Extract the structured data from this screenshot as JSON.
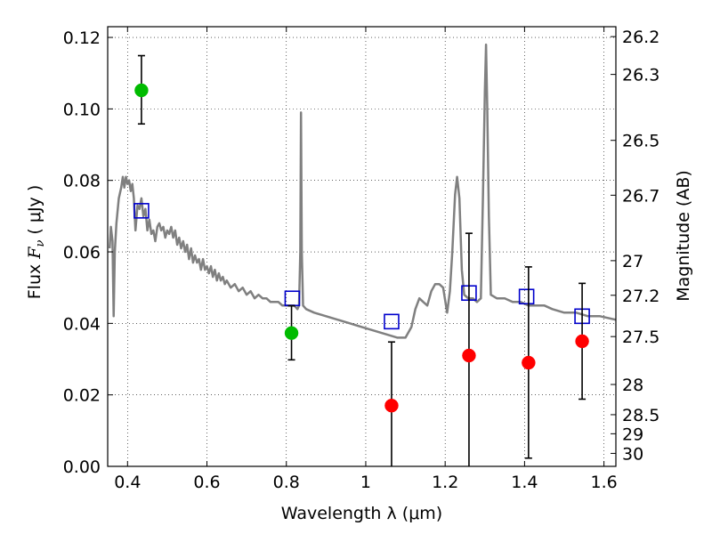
{
  "chart_data": {
    "type": "scatter",
    "xlabel": "Wavelength  λ (μm)",
    "ylabel_parts": [
      "Flux  ",
      "F",
      "ν",
      "  (  μJy  )"
    ],
    "y2label": "Magnitude (AB)",
    "xlim": [
      0.35,
      1.63
    ],
    "ylim": [
      0.0,
      0.123
    ],
    "grid": true,
    "x_ticks": [
      {
        "value": 0.4,
        "label": "0.4"
      },
      {
        "value": 0.6,
        "label": "0.6"
      },
      {
        "value": 0.8,
        "label": "0.8"
      },
      {
        "value": 1.0,
        "label": "1"
      },
      {
        "value": 1.2,
        "label": "1.2"
      },
      {
        "value": 1.4,
        "label": "1.4"
      },
      {
        "value": 1.6,
        "label": "1.6"
      }
    ],
    "y_ticks": [
      {
        "value": 0.0,
        "label": "0.00"
      },
      {
        "value": 0.02,
        "label": "0.02"
      },
      {
        "value": 0.04,
        "label": "0.04"
      },
      {
        "value": 0.06,
        "label": "0.06"
      },
      {
        "value": 0.08,
        "label": "0.08"
      },
      {
        "value": 0.1,
        "label": "0.10"
      },
      {
        "value": 0.12,
        "label": "0.12"
      }
    ],
    "mag_ticks": [
      {
        "mag": 26.2,
        "label": "26.2"
      },
      {
        "mag": 26.3,
        "label": "26.3"
      },
      {
        "mag": 26.5,
        "label": "26.5"
      },
      {
        "mag": 26.7,
        "label": "26.7"
      },
      {
        "mag": 27.0,
        "label": "27"
      },
      {
        "mag": 27.2,
        "label": "27.2"
      },
      {
        "mag": 27.5,
        "label": "27.5"
      },
      {
        "mag": 28.0,
        "label": "28"
      },
      {
        "mag": 28.5,
        "label": "28.5"
      },
      {
        "mag": 29.0,
        "label": "29"
      },
      {
        "mag": 30.0,
        "label": "30"
      }
    ],
    "series": [
      {
        "kind": "line",
        "color": "#808080",
        "points": [
          [
            0.355,
            0.061
          ],
          [
            0.358,
            0.067
          ],
          [
            0.362,
            0.063
          ],
          [
            0.365,
            0.042
          ],
          [
            0.368,
            0.06
          ],
          [
            0.372,
            0.068
          ],
          [
            0.378,
            0.075
          ],
          [
            0.384,
            0.078
          ],
          [
            0.388,
            0.081
          ],
          [
            0.392,
            0.078
          ],
          [
            0.396,
            0.081
          ],
          [
            0.4,
            0.079
          ],
          [
            0.404,
            0.08
          ],
          [
            0.408,
            0.077
          ],
          [
            0.412,
            0.079
          ],
          [
            0.416,
            0.075
          ],
          [
            0.42,
            0.066
          ],
          [
            0.425,
            0.073
          ],
          [
            0.43,
            0.072
          ],
          [
            0.435,
            0.075
          ],
          [
            0.44,
            0.07
          ],
          [
            0.445,
            0.072
          ],
          [
            0.45,
            0.066
          ],
          [
            0.455,
            0.069
          ],
          [
            0.46,
            0.065
          ],
          [
            0.465,
            0.066
          ],
          [
            0.47,
            0.063
          ],
          [
            0.475,
            0.067
          ],
          [
            0.48,
            0.068
          ],
          [
            0.485,
            0.066
          ],
          [
            0.49,
            0.067
          ],
          [
            0.495,
            0.064
          ],
          [
            0.5,
            0.066
          ],
          [
            0.505,
            0.065
          ],
          [
            0.51,
            0.067
          ],
          [
            0.515,
            0.064
          ],
          [
            0.52,
            0.066
          ],
          [
            0.525,
            0.062
          ],
          [
            0.53,
            0.064
          ],
          [
            0.535,
            0.061
          ],
          [
            0.54,
            0.063
          ],
          [
            0.545,
            0.06
          ],
          [
            0.55,
            0.062
          ],
          [
            0.555,
            0.058
          ],
          [
            0.56,
            0.061
          ],
          [
            0.565,
            0.057
          ],
          [
            0.57,
            0.059
          ],
          [
            0.575,
            0.057
          ],
          [
            0.58,
            0.058
          ],
          [
            0.585,
            0.055
          ],
          [
            0.59,
            0.058
          ],
          [
            0.595,
            0.055
          ],
          [
            0.6,
            0.056
          ],
          [
            0.605,
            0.054
          ],
          [
            0.61,
            0.056
          ],
          [
            0.615,
            0.053
          ],
          [
            0.62,
            0.055
          ],
          [
            0.625,
            0.052
          ],
          [
            0.63,
            0.054
          ],
          [
            0.635,
            0.052
          ],
          [
            0.64,
            0.053
          ],
          [
            0.645,
            0.051
          ],
          [
            0.65,
            0.052
          ],
          [
            0.66,
            0.05
          ],
          [
            0.67,
            0.051
          ],
          [
            0.68,
            0.049
          ],
          [
            0.69,
            0.05
          ],
          [
            0.7,
            0.048
          ],
          [
            0.71,
            0.049
          ],
          [
            0.72,
            0.047
          ],
          [
            0.73,
            0.048
          ],
          [
            0.74,
            0.047
          ],
          [
            0.75,
            0.047
          ],
          [
            0.76,
            0.046
          ],
          [
            0.77,
            0.046
          ],
          [
            0.78,
            0.046
          ],
          [
            0.79,
            0.045
          ],
          [
            0.8,
            0.045
          ],
          [
            0.81,
            0.045
          ],
          [
            0.82,
            0.045
          ],
          [
            0.828,
            0.044
          ],
          [
            0.832,
            0.045
          ],
          [
            0.835,
            0.06
          ],
          [
            0.837,
            0.099
          ],
          [
            0.839,
            0.06
          ],
          [
            0.842,
            0.045
          ],
          [
            0.85,
            0.044
          ],
          [
            0.87,
            0.043
          ],
          [
            0.9,
            0.042
          ],
          [
            0.93,
            0.041
          ],
          [
            0.96,
            0.04
          ],
          [
            0.99,
            0.039
          ],
          [
            1.02,
            0.038
          ],
          [
            1.05,
            0.037
          ],
          [
            1.08,
            0.036
          ],
          [
            1.1,
            0.036
          ],
          [
            1.115,
            0.039
          ],
          [
            1.125,
            0.044
          ],
          [
            1.135,
            0.047
          ],
          [
            1.145,
            0.046
          ],
          [
            1.155,
            0.045
          ],
          [
            1.165,
            0.049
          ],
          [
            1.175,
            0.051
          ],
          [
            1.185,
            0.051
          ],
          [
            1.195,
            0.05
          ],
          [
            1.205,
            0.043
          ],
          [
            1.212,
            0.049
          ],
          [
            1.218,
            0.06
          ],
          [
            1.225,
            0.076
          ],
          [
            1.23,
            0.081
          ],
          [
            1.236,
            0.075
          ],
          [
            1.242,
            0.055
          ],
          [
            1.248,
            0.048
          ],
          [
            1.258,
            0.047
          ],
          [
            1.27,
            0.047
          ],
          [
            1.28,
            0.046
          ],
          [
            1.29,
            0.047
          ],
          [
            1.295,
            0.075
          ],
          [
            1.3,
            0.105
          ],
          [
            1.303,
            0.118
          ],
          [
            1.306,
            0.1
          ],
          [
            1.31,
            0.07
          ],
          [
            1.315,
            0.048
          ],
          [
            1.33,
            0.047
          ],
          [
            1.35,
            0.047
          ],
          [
            1.37,
            0.046
          ],
          [
            1.39,
            0.046
          ],
          [
            1.41,
            0.045
          ],
          [
            1.43,
            0.045
          ],
          [
            1.45,
            0.045
          ],
          [
            1.47,
            0.044
          ],
          [
            1.5,
            0.043
          ],
          [
            1.53,
            0.043
          ],
          [
            1.56,
            0.042
          ],
          [
            1.59,
            0.042
          ],
          [
            1.63,
            0.041
          ]
        ]
      },
      {
        "kind": "square",
        "color": "#0000cc",
        "points": [
          [
            0.435,
            0.0715
          ],
          [
            0.815,
            0.047
          ],
          [
            1.065,
            0.0405
          ],
          [
            1.26,
            0.0485
          ],
          [
            1.405,
            0.0475
          ],
          [
            1.545,
            0.042
          ]
        ]
      },
      {
        "kind": "circle",
        "color": "#00bb00",
        "points": [
          [
            0.435,
            0.1052
          ],
          [
            0.813,
            0.0373
          ]
        ],
        "errors": [
          [
            0.0958,
            0.1149
          ],
          [
            0.0298,
            0.0449
          ]
        ]
      },
      {
        "kind": "circle",
        "color": "#ff0000",
        "points": [
          [
            1.065,
            0.017
          ],
          [
            1.26,
            0.031
          ],
          [
            1.41,
            0.029
          ],
          [
            1.545,
            0.035
          ]
        ],
        "errors": [
          [
            0.0,
            0.0348
          ],
          [
            -0.003,
            0.0652
          ],
          [
            0.0023,
            0.0558
          ],
          [
            0.0188,
            0.0512
          ]
        ]
      }
    ]
  }
}
